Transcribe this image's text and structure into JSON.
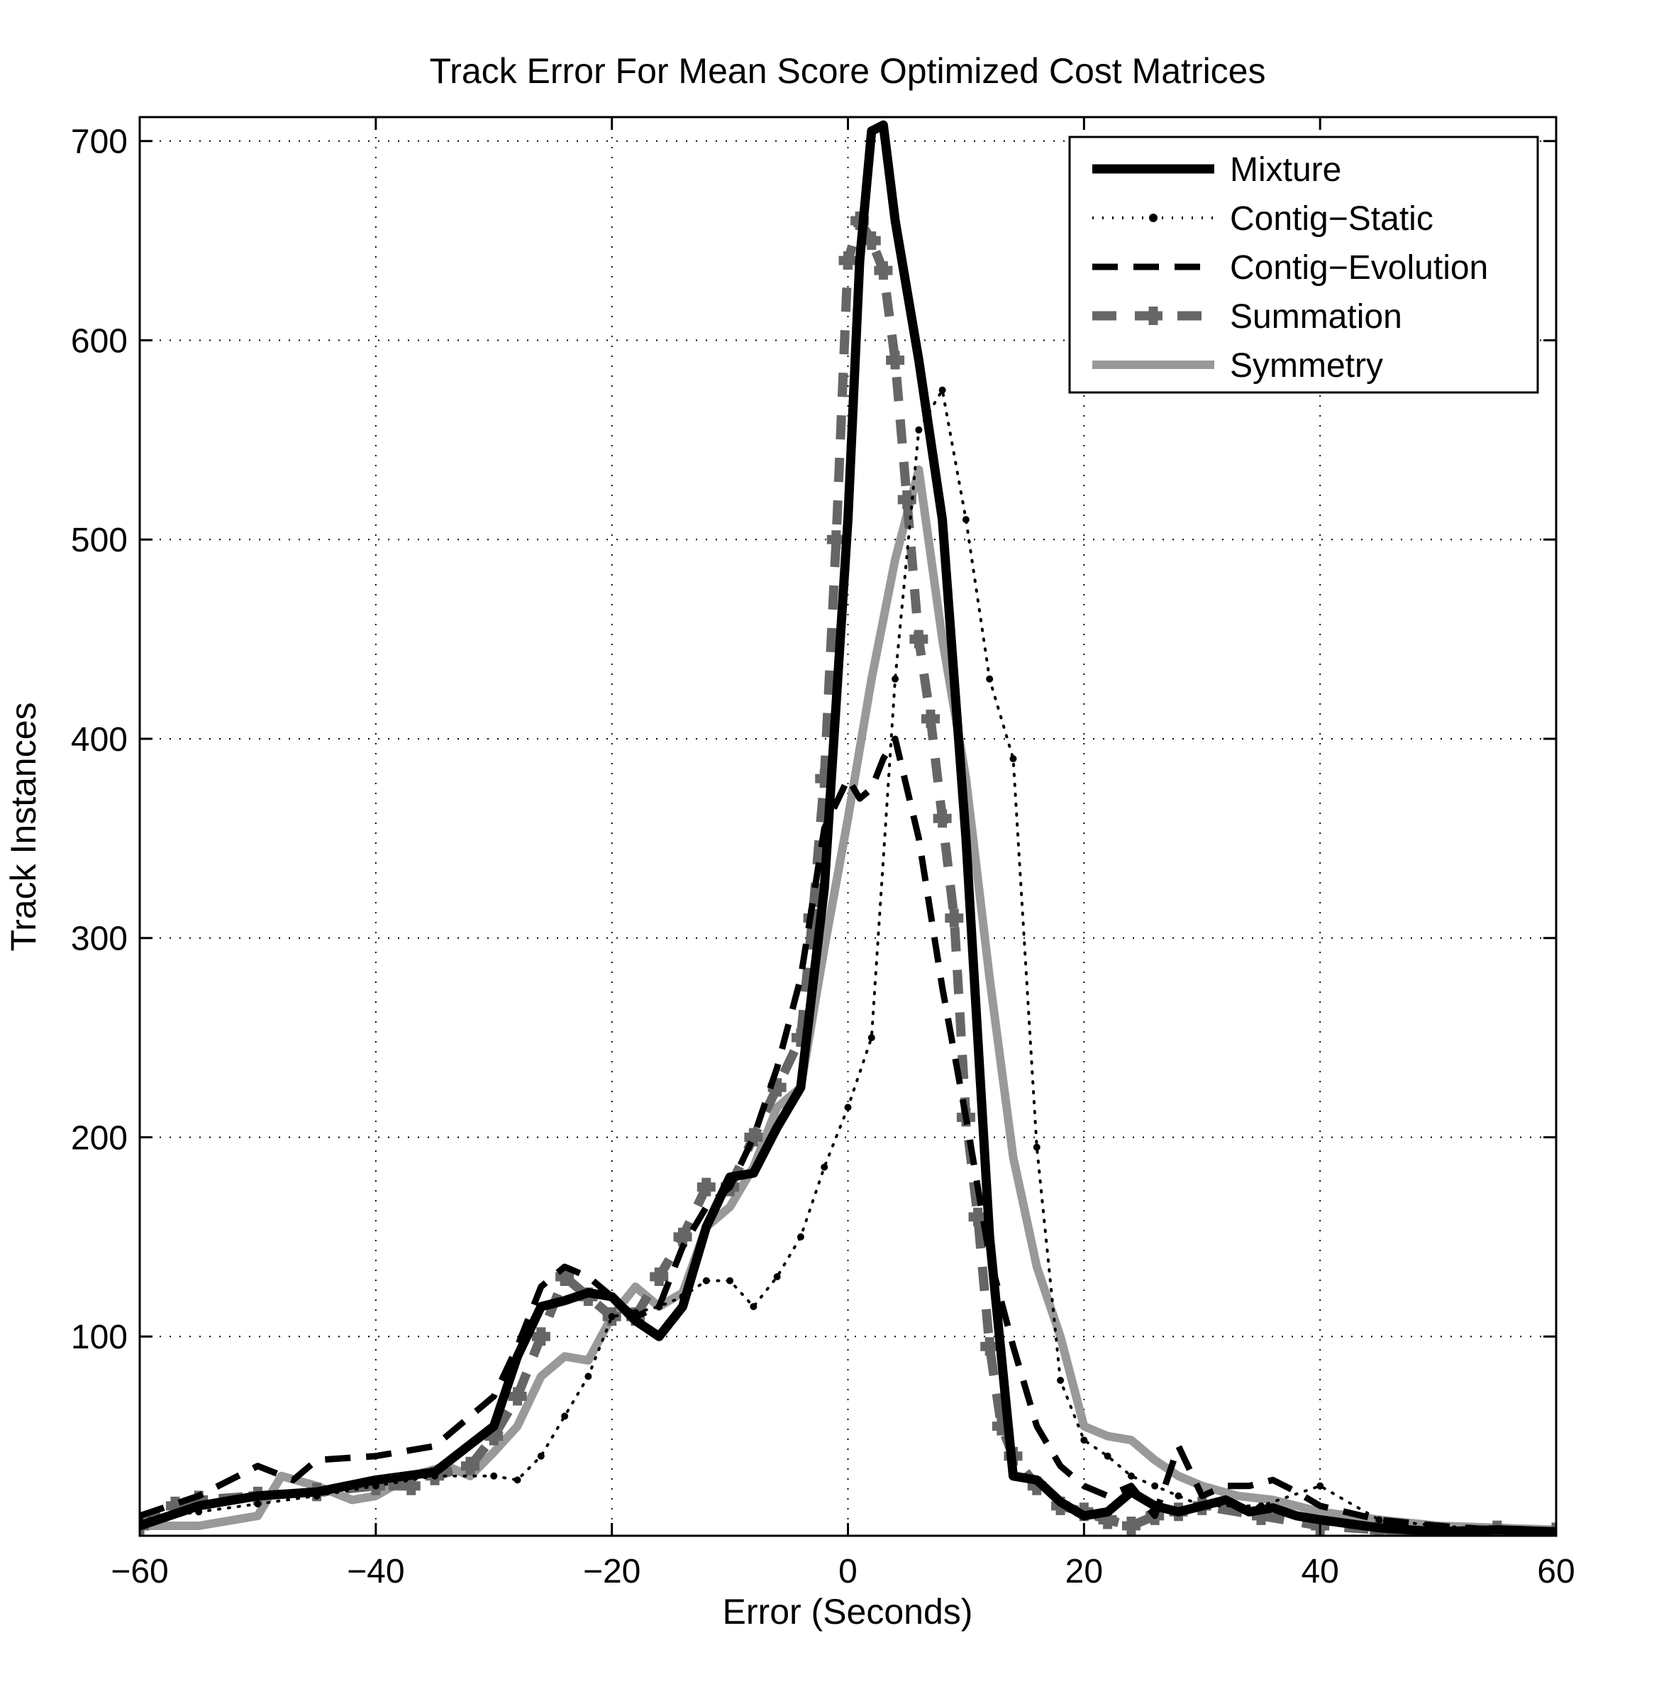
{
  "chart_data": {
    "type": "line",
    "title": "Track Error For Mean Score Optimized Cost Matrices",
    "xlabel": "Error (Seconds)",
    "ylabel": "Track Instances",
    "xlim": [
      -60,
      60
    ],
    "ylim": [
      0,
      712
    ],
    "xticks": [
      -60,
      -40,
      -20,
      0,
      20,
      40,
      60
    ],
    "xtick_labels": [
      "−60",
      "−40",
      "−20",
      "0",
      "20",
      "40",
      "60"
    ],
    "yticks": [
      100,
      200,
      300,
      400,
      500,
      600,
      700
    ],
    "ytick_labels": [
      "100",
      "200",
      "300",
      "400",
      "500",
      "600",
      "700"
    ],
    "grid": true,
    "legend_position": "top-right",
    "series": [
      {
        "name": "Mixture",
        "color": "#000000",
        "style": "thick-solid",
        "x": [
          -60,
          -55,
          -50,
          -45,
          -40,
          -35,
          -30,
          -28,
          -26,
          -24,
          -22,
          -20,
          -18,
          -16,
          -14,
          -12,
          -10,
          -8,
          -6,
          -4,
          -2,
          0,
          1,
          2,
          3,
          4,
          6,
          8,
          10,
          12,
          14,
          16,
          18,
          20,
          22,
          24,
          26,
          28,
          30,
          32,
          34,
          36,
          38,
          40,
          45,
          50,
          55,
          60
        ],
        "y": [
          5,
          15,
          20,
          22,
          28,
          32,
          55,
          90,
          115,
          118,
          122,
          120,
          108,
          100,
          115,
          155,
          180,
          182,
          205,
          225,
          325,
          510,
          640,
          705,
          708,
          660,
          590,
          510,
          350,
          150,
          30,
          28,
          17,
          10,
          12,
          22,
          15,
          12,
          15,
          18,
          12,
          14,
          10,
          8,
          4,
          2,
          3,
          2
        ]
      },
      {
        "name": "Contig−Static",
        "color": "#000000",
        "style": "dotted",
        "x": [
          -60,
          -55,
          -50,
          -45,
          -40,
          -35,
          -30,
          -28,
          -26,
          -24,
          -22,
          -20,
          -18,
          -16,
          -14,
          -12,
          -10,
          -8,
          -6,
          -4,
          -2,
          0,
          2,
          4,
          6,
          8,
          10,
          12,
          14,
          16,
          18,
          20,
          22,
          24,
          26,
          28,
          30,
          35,
          40,
          45,
          50,
          55,
          60
        ],
        "y": [
          8,
          12,
          16,
          20,
          25,
          30,
          30,
          28,
          40,
          60,
          80,
          110,
          112,
          115,
          120,
          128,
          128,
          115,
          130,
          150,
          185,
          215,
          250,
          430,
          555,
          575,
          510,
          430,
          390,
          195,
          78,
          48,
          40,
          30,
          25,
          20,
          15,
          15,
          25,
          8,
          5,
          3,
          2
        ]
      },
      {
        "name": "Contig−Evolution",
        "color": "#000000",
        "style": "dashed",
        "x": [
          -60,
          -55,
          -50,
          -47,
          -45,
          -40,
          -35,
          -30,
          -28,
          -26,
          -24,
          -22,
          -20,
          -18,
          -16,
          -14,
          -12,
          -10,
          -8,
          -6,
          -4,
          -2,
          0,
          1,
          2,
          3,
          4,
          6,
          8,
          10,
          12,
          14,
          16,
          18,
          20,
          22,
          24,
          26,
          28,
          30,
          32,
          34,
          36,
          38,
          40,
          45,
          50,
          55,
          60
        ],
        "y": [
          10,
          20,
          35,
          28,
          38,
          40,
          45,
          70,
          95,
          125,
          135,
          130,
          120,
          110,
          115,
          145,
          165,
          175,
          200,
          235,
          280,
          355,
          380,
          370,
          375,
          390,
          400,
          350,
          275,
          210,
          140,
          95,
          55,
          35,
          25,
          20,
          25,
          10,
          45,
          20,
          25,
          25,
          28,
          22,
          15,
          8,
          5,
          3,
          2
        ]
      },
      {
        "name": "Summation",
        "color": "#666666",
        "style": "dash-plus",
        "x": [
          -60,
          -57,
          -55,
          -50,
          -45,
          -40,
          -37,
          -35,
          -32,
          -30,
          -28,
          -26,
          -24,
          -22,
          -20,
          -18,
          -16,
          -14,
          -12,
          -10,
          -8,
          -6,
          -4,
          -3,
          -2,
          -1,
          0,
          1,
          2,
          3,
          4,
          5,
          6,
          7,
          8,
          9,
          10,
          11,
          12,
          13,
          14,
          16,
          18,
          20,
          22,
          24,
          26,
          28,
          30,
          35,
          40,
          45,
          50,
          55,
          60
        ],
        "y": [
          5,
          15,
          18,
          20,
          22,
          25,
          25,
          30,
          35,
          50,
          70,
          100,
          130,
          120,
          110,
          110,
          130,
          150,
          175,
          175,
          200,
          225,
          250,
          310,
          380,
          500,
          640,
          660,
          650,
          635,
          590,
          520,
          450,
          410,
          360,
          310,
          210,
          160,
          95,
          55,
          40,
          25,
          15,
          12,
          8,
          5,
          10,
          12,
          15,
          10,
          5,
          3,
          2,
          3,
          2
        ]
      },
      {
        "name": "Symmetry",
        "color": "#999999",
        "style": "thick-solid-light",
        "x": [
          -60,
          -55,
          -50,
          -48,
          -45,
          -42,
          -40,
          -37,
          -34,
          -32,
          -30,
          -28,
          -26,
          -24,
          -22,
          -20,
          -18,
          -16,
          -14,
          -12,
          -10,
          -8,
          -6,
          -4,
          -2,
          0,
          2,
          4,
          6,
          8,
          10,
          12,
          14,
          16,
          18,
          20,
          22,
          24,
          26,
          28,
          30,
          33,
          36,
          40,
          45,
          50,
          55,
          60
        ],
        "y": [
          5,
          5,
          10,
          30,
          25,
          18,
          20,
          30,
          35,
          30,
          42,
          55,
          80,
          90,
          88,
          110,
          125,
          115,
          122,
          155,
          165,
          185,
          215,
          225,
          295,
          360,
          430,
          490,
          535,
          450,
          380,
          280,
          190,
          135,
          100,
          55,
          50,
          48,
          38,
          30,
          25,
          20,
          18,
          12,
          8,
          5,
          4,
          3
        ]
      }
    ]
  }
}
